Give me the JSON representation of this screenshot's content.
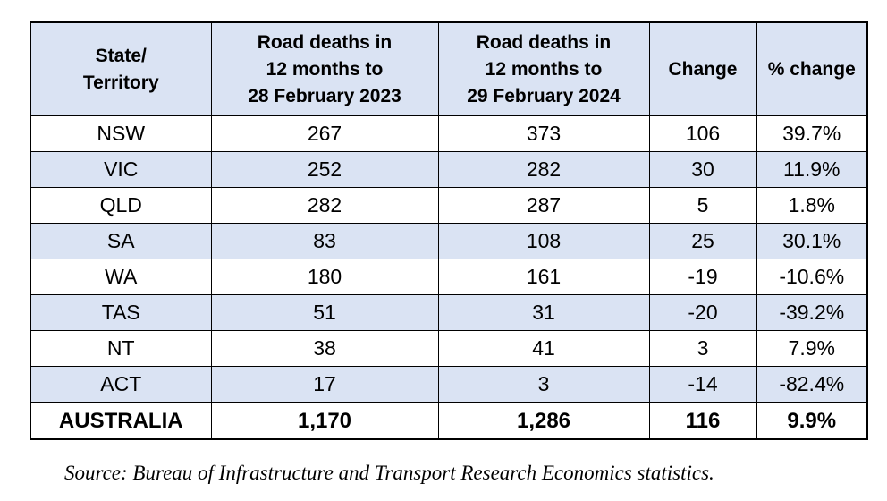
{
  "table": {
    "headers": [
      [
        "State/",
        "Territory"
      ],
      [
        "Road deaths in",
        "12 months to",
        "28 February 2023"
      ],
      [
        "Road deaths in",
        "12 months to",
        "29 February 2024"
      ],
      [
        "Change"
      ],
      [
        "% change"
      ]
    ],
    "rows": [
      [
        "NSW",
        "267",
        "373",
        "106",
        "39.7%"
      ],
      [
        "VIC",
        "252",
        "282",
        "30",
        "11.9%"
      ],
      [
        "QLD",
        "282",
        "287",
        "5",
        "1.8%"
      ],
      [
        "SA",
        "83",
        "108",
        "25",
        "30.1%"
      ],
      [
        "WA",
        "180",
        "161",
        "-19",
        "-10.6%"
      ],
      [
        "TAS",
        "51",
        "31",
        "-20",
        "-39.2%"
      ],
      [
        "NT",
        "38",
        "41",
        "3",
        "7.9%"
      ],
      [
        "ACT",
        "17",
        "3",
        "-14",
        "-82.4%"
      ]
    ],
    "total": [
      "AUSTRALIA",
      "1,170",
      "1,286",
      "116",
      "9.9%"
    ]
  },
  "source": "Source: Bureau of Infrastructure and Transport Research Economics statistics.",
  "colors": {
    "header_bg": "#dae3f3",
    "shaded_row_bg": "#dae3f3",
    "border": "#000000"
  }
}
